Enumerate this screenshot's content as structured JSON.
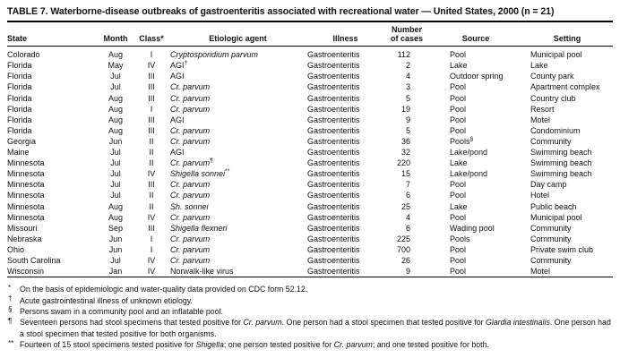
{
  "title": "TABLE 7. Waterborne-disease outbreaks of gastroenteritis associated with recreational water — United States, 2000 (n = 21)",
  "table": {
    "headers": [
      {
        "key": "state",
        "label": "State"
      },
      {
        "key": "month",
        "label": "Month"
      },
      {
        "key": "class",
        "label": "Class*"
      },
      {
        "key": "etiologic-agent",
        "label": "Etiologic agent"
      },
      {
        "key": "illness",
        "label": "Illness"
      },
      {
        "key": "number-of-cases",
        "label": "Number\nof cases"
      },
      {
        "key": "source",
        "label": "Source"
      },
      {
        "key": "setting",
        "label": "Setting"
      }
    ],
    "rows": [
      {
        "state": "Colorado",
        "month": "Aug",
        "class": "I",
        "agent": "Cryptosporidium parvum",
        "agent_italic": true,
        "agent_sup": "",
        "illness": "Gastroenteritis",
        "cases": "112",
        "source": "Pool",
        "source_sup": "",
        "setting": "Municipal pool"
      },
      {
        "state": "Florida",
        "month": "May",
        "class": "IV",
        "agent": "AGI",
        "agent_italic": false,
        "agent_sup": "†",
        "illness": "Gastroenteritis",
        "cases": "2",
        "source": "Lake",
        "source_sup": "",
        "setting": "Lake"
      },
      {
        "state": "Florida",
        "month": "Jul",
        "class": "III",
        "agent": "AGI",
        "agent_italic": false,
        "agent_sup": "",
        "illness": "Gastroenteritis",
        "cases": "4",
        "source": "Outdoor spring",
        "source_sup": "",
        "setting": "County park"
      },
      {
        "state": "Florida",
        "month": "Jul",
        "class": "III",
        "agent": "Cr. parvum",
        "agent_italic": true,
        "agent_sup": "",
        "illness": "Gastroenteritis",
        "cases": "3",
        "source": "Pool",
        "source_sup": "",
        "setting": "Apartment complex"
      },
      {
        "state": "Florida",
        "month": "Aug",
        "class": "III",
        "agent": "Cr. parvum",
        "agent_italic": true,
        "agent_sup": "",
        "illness": "Gastroenteritis",
        "cases": "5",
        "source": "Pool",
        "source_sup": "",
        "setting": "Country club"
      },
      {
        "state": "Florida",
        "month": "Aug",
        "class": "I",
        "agent": "Cr. parvum",
        "agent_italic": true,
        "agent_sup": "",
        "illness": "Gastroenteritis",
        "cases": "19",
        "source": "Pool",
        "source_sup": "",
        "setting": "Resort"
      },
      {
        "state": "Florida",
        "month": "Aug",
        "class": "III",
        "agent": "AGI",
        "agent_italic": false,
        "agent_sup": "",
        "illness": "Gastroenteritis",
        "cases": "9",
        "source": "Pool",
        "source_sup": "",
        "setting": "Motel"
      },
      {
        "state": "Florida",
        "month": "Aug",
        "class": "III",
        "agent": "Cr. parvum",
        "agent_italic": true,
        "agent_sup": "",
        "illness": "Gastroenteritis",
        "cases": "5",
        "source": "Pool",
        "source_sup": "",
        "setting": "Condominium"
      },
      {
        "state": "Georgia",
        "month": "Jun",
        "class": "II",
        "agent": "Cr. parvum",
        "agent_italic": true,
        "agent_sup": "",
        "illness": "Gastroenteritis",
        "cases": "36",
        "source": "Pools",
        "source_sup": "§",
        "setting": "Community"
      },
      {
        "state": "Maine",
        "month": "Jul",
        "class": "II",
        "agent": "AGI",
        "agent_italic": false,
        "agent_sup": "",
        "illness": "Gastroenteritis",
        "cases": "32",
        "source": "Lake/pond",
        "source_sup": "",
        "setting": "Swimming beach"
      },
      {
        "state": "Minnesota",
        "month": "Jul",
        "class": "II",
        "agent": "Cr. parvum",
        "agent_italic": true,
        "agent_sup": "¶",
        "illness": "Gastroenteritis",
        "cases": "220",
        "source": "Lake",
        "source_sup": "",
        "setting": "Swimming beach"
      },
      {
        "state": "Minnesota",
        "month": "Jul",
        "class": "IV",
        "agent": "Shigella sonnei",
        "agent_italic": true,
        "agent_sup": "**",
        "illness": "Gastroenteritis",
        "cases": "15",
        "source": "Lake/pond",
        "source_sup": "",
        "setting": "Swimming beach"
      },
      {
        "state": "Minnesota",
        "month": "Jul",
        "class": "III",
        "agent": "Cr. parvum",
        "agent_italic": true,
        "agent_sup": "",
        "illness": "Gastroenteritis",
        "cases": "7",
        "source": "Pool",
        "source_sup": "",
        "setting": "Day camp"
      },
      {
        "state": "Minnesota",
        "month": "Jul",
        "class": "II",
        "agent": "Cr. parvum",
        "agent_italic": true,
        "agent_sup": "",
        "illness": "Gastroenteritis",
        "cases": "6",
        "source": "Pool",
        "source_sup": "",
        "setting": "Hotel"
      },
      {
        "state": "Minnesota",
        "month": "Aug",
        "class": "II",
        "agent": "Sh. sonnei",
        "agent_italic": true,
        "agent_sup": "",
        "illness": "Gastroenteritis",
        "cases": "25",
        "source": "Lake",
        "source_sup": "",
        "setting": "Public beach"
      },
      {
        "state": "Minnesota",
        "month": "Aug",
        "class": "IV",
        "agent": "Cr. parvum",
        "agent_italic": true,
        "agent_sup": "",
        "illness": "Gastroenteritis",
        "cases": "4",
        "source": "Pool",
        "source_sup": "",
        "setting": "Municipal pool"
      },
      {
        "state": "Missouri",
        "month": "Sep",
        "class": "III",
        "agent": "Shigella flexneri",
        "agent_italic": true,
        "agent_sup": "",
        "illness": "Gastroenteritis",
        "cases": "6",
        "source": "Wading pool",
        "source_sup": "",
        "setting": "Community"
      },
      {
        "state": "Nebraska",
        "month": "Jun",
        "class": "I",
        "agent": "Cr. parvum",
        "agent_italic": true,
        "agent_sup": "",
        "illness": "Gastroenteritis",
        "cases": "225",
        "source": "Pools",
        "source_sup": "",
        "setting": "Community"
      },
      {
        "state": "Ohio",
        "month": "Jun",
        "class": "I",
        "agent": "Cr. parvum",
        "agent_italic": true,
        "agent_sup": "",
        "illness": "Gastroenteritis",
        "cases": "700",
        "source": "Pool",
        "source_sup": "",
        "setting": "Private swim club"
      },
      {
        "state": "South Carolina",
        "month": "Jul",
        "class": "IV",
        "agent": "Cr. parvum",
        "agent_italic": true,
        "agent_sup": "",
        "illness": "Gastroenteritis",
        "cases": "26",
        "source": "Pool",
        "source_sup": "",
        "setting": "Community"
      },
      {
        "state": "Wisconsin",
        "month": "Jan",
        "class": "IV",
        "agent": "Norwalk-like virus",
        "agent_italic": false,
        "agent_sup": "",
        "illness": "Gastroenteritis",
        "cases": "9",
        "source": "Pool",
        "source_sup": "",
        "setting": "Motel"
      }
    ]
  },
  "footnotes": [
    {
      "marker": "*",
      "segments": [
        {
          "text": "On the basis of epidemiologic and water-quality data provided on CDC form 52.12.",
          "italic": false
        }
      ]
    },
    {
      "marker": "†",
      "segments": [
        {
          "text": "Acute gastrointestinal illness of unknown etiology.",
          "italic": false
        }
      ]
    },
    {
      "marker": "§",
      "segments": [
        {
          "text": "Persons swam in a community pool and an inflatable pool.",
          "italic": false
        }
      ]
    },
    {
      "marker": "¶",
      "segments": [
        {
          "text": "Seventeen persons had stool specimens that tested positive for ",
          "italic": false
        },
        {
          "text": "Cr. parvum",
          "italic": true
        },
        {
          "text": ". One person had a stool specimen that tested positive for ",
          "italic": false
        },
        {
          "text": "Giardia intestinalis",
          "italic": true
        },
        {
          "text": ". One person had a stool specimen that tested positive for both organisms.",
          "italic": false
        }
      ]
    },
    {
      "marker": "**",
      "segments": [
        {
          "text": "Fourteen of 15 stool specimens tested positive for ",
          "italic": false
        },
        {
          "text": "Shigella",
          "italic": true
        },
        {
          "text": "; one person tested positive for ",
          "italic": false
        },
        {
          "text": "Cr. parvum",
          "italic": true
        },
        {
          "text": "; and one tested positive for both.",
          "italic": false
        }
      ]
    }
  ]
}
